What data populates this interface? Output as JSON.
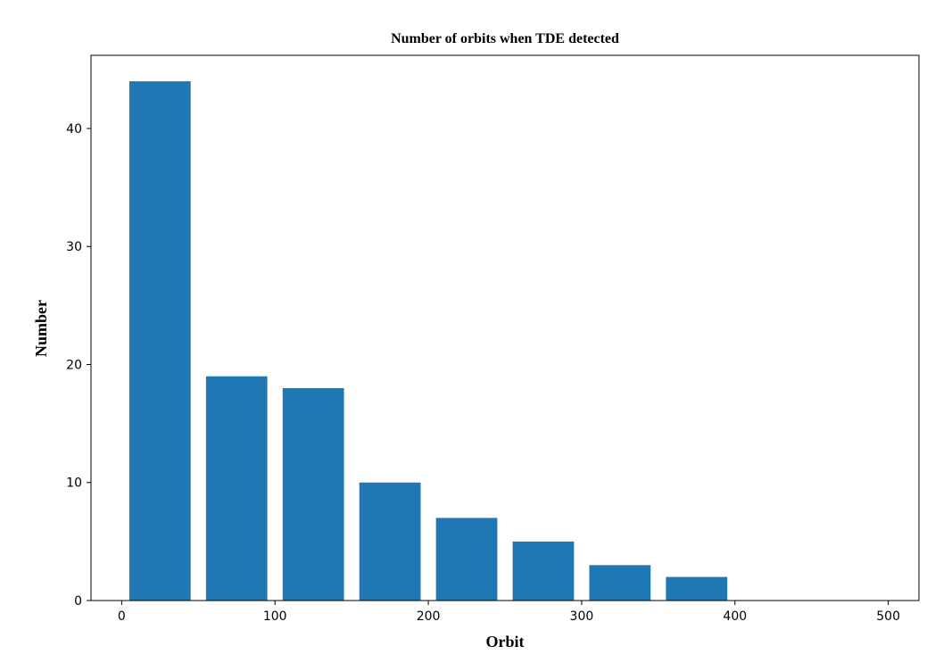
{
  "chart_data": {
    "type": "bar",
    "title": "Number of orbits when TDE detected",
    "xlabel": "Orbit",
    "ylabel": "Number",
    "bars": [
      {
        "x": 25,
        "value": 44
      },
      {
        "x": 75,
        "value": 19
      },
      {
        "x": 125,
        "value": 18
      },
      {
        "x": 175,
        "value": 10
      },
      {
        "x": 225,
        "value": 7
      },
      {
        "x": 275,
        "value": 5
      },
      {
        "x": 325,
        "value": 3
      },
      {
        "x": 375,
        "value": 2
      }
    ],
    "bar_width": 40,
    "xlim": [
      -20,
      520
    ],
    "ylim": [
      0,
      46.2
    ],
    "x_ticks": [
      0,
      100,
      200,
      300,
      400,
      500
    ],
    "y_ticks": [
      0,
      10,
      20,
      30,
      40
    ],
    "bar_color": "#1f77b4",
    "grid": false,
    "legend": "none"
  }
}
